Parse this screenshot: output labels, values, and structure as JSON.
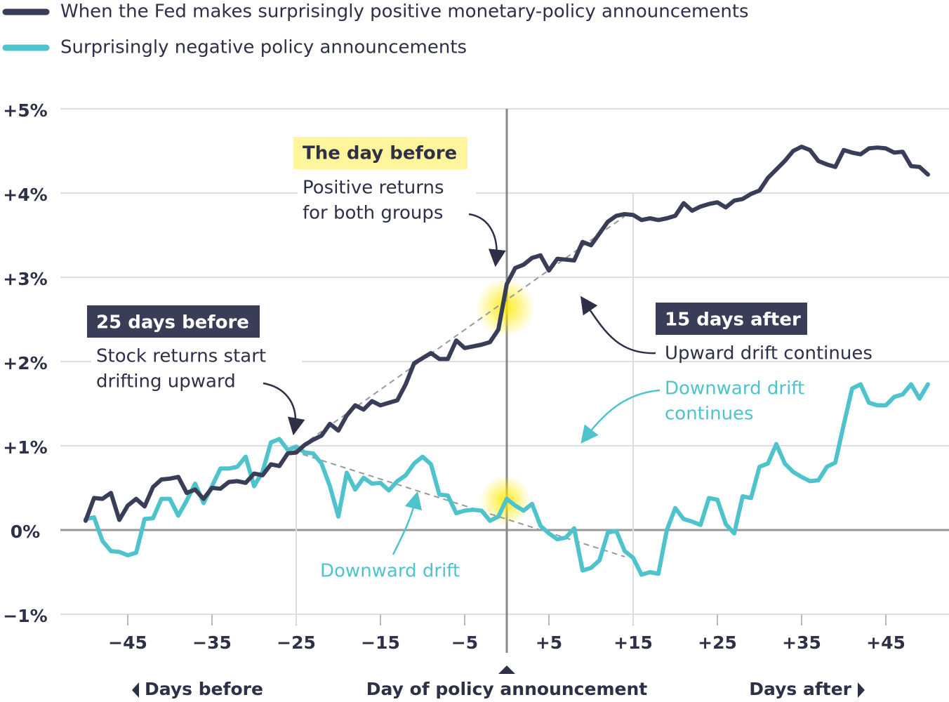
{
  "chart_data": {
    "type": "line",
    "legend": [
      "When the Fed makes surprisingly positive monetary-policy announcements",
      "Surprisingly negative policy announcements"
    ],
    "x": [
      -50,
      -49,
      -48,
      -47,
      -46,
      -45,
      -44,
      -43,
      -42,
      -41,
      -40,
      -39,
      -38,
      -37,
      -36,
      -35,
      -34,
      -33,
      -32,
      -31,
      -30,
      -29,
      -28,
      -27,
      -26,
      -25,
      -24,
      -23,
      -22,
      -21,
      -20,
      -19,
      -18,
      -17,
      -16,
      -15,
      -14,
      -13,
      -12,
      -11,
      -10,
      -9,
      -8,
      -7,
      -6,
      -5,
      -4,
      -3,
      -2,
      -1,
      0,
      1,
      2,
      3,
      4,
      5,
      6,
      7,
      8,
      9,
      10,
      11,
      12,
      13,
      14,
      15,
      16,
      17,
      18,
      19,
      20,
      21,
      22,
      23,
      24,
      25,
      26,
      27,
      28,
      29,
      30,
      31,
      32,
      33,
      34,
      35,
      36,
      37,
      38,
      39,
      40,
      41,
      42,
      43,
      44,
      45,
      46,
      47,
      48,
      49,
      50
    ],
    "series": [
      {
        "name": "When the Fed makes surprisingly positive monetary-policy announcements",
        "color": "#3a3d58",
        "values": [
          0.11,
          0.38,
          0.37,
          0.44,
          0.12,
          0.29,
          0.37,
          0.28,
          0.51,
          0.6,
          0.61,
          0.63,
          0.44,
          0.48,
          0.37,
          0.5,
          0.49,
          0.57,
          0.58,
          0.56,
          0.67,
          0.65,
          0.78,
          0.76,
          0.91,
          0.92,
          1.01,
          1.07,
          1.12,
          1.26,
          1.18,
          1.36,
          1.48,
          1.43,
          1.53,
          1.48,
          1.51,
          1.54,
          1.73,
          1.98,
          2.04,
          2.1,
          2.03,
          2.03,
          2.25,
          2.16,
          2.18,
          2.2,
          2.23,
          2.38,
          2.92,
          3.11,
          3.15,
          3.23,
          3.26,
          3.08,
          3.22,
          3.21,
          3.2,
          3.42,
          3.38,
          3.52,
          3.66,
          3.73,
          3.75,
          3.74,
          3.68,
          3.7,
          3.68,
          3.7,
          3.73,
          3.88,
          3.79,
          3.84,
          3.87,
          3.89,
          3.83,
          3.91,
          3.93,
          3.99,
          4.03,
          4.18,
          4.28,
          4.38,
          4.5,
          4.55,
          4.51,
          4.38,
          4.34,
          4.31,
          4.51,
          4.48,
          4.46,
          4.53,
          4.54,
          4.53,
          4.48,
          4.49,
          4.32,
          4.31,
          4.22
        ]
      },
      {
        "name": "Surprisingly negative policy announcements",
        "color": "#4ec3cc",
        "values": [
          0.13,
          0.15,
          -0.13,
          -0.25,
          -0.26,
          -0.3,
          -0.27,
          0.13,
          0.14,
          0.37,
          0.37,
          0.17,
          0.35,
          0.55,
          0.32,
          0.52,
          0.73,
          0.73,
          0.75,
          0.87,
          0.52,
          0.69,
          1.04,
          1.08,
          0.95,
          0.99,
          0.92,
          0.91,
          0.79,
          0.52,
          0.16,
          0.68,
          0.48,
          0.62,
          0.55,
          0.56,
          0.47,
          0.58,
          0.65,
          0.79,
          0.87,
          0.78,
          0.42,
          0.41,
          0.2,
          0.23,
          0.24,
          0.23,
          0.11,
          0.16,
          0.37,
          0.29,
          0.23,
          0.31,
          0.05,
          -0.04,
          -0.11,
          -0.09,
          0.02,
          -0.48,
          -0.45,
          -0.36,
          -0.03,
          -0.01,
          -0.25,
          -0.33,
          -0.53,
          -0.5,
          -0.52,
          0,
          0.26,
          0.13,
          0.1,
          0.06,
          0.38,
          0.36,
          0.07,
          -0.04,
          0.4,
          0.38,
          0.75,
          0.79,
          1.02,
          0.79,
          0.69,
          0.63,
          0.58,
          0.59,
          0.75,
          0.8,
          1.25,
          1.68,
          1.73,
          1.51,
          1.48,
          1.48,
          1.58,
          1.61,
          1.73,
          1.56,
          1.73
        ]
      }
    ],
    "xlim": [
      -53,
      52.5
    ],
    "ylim": [
      -1,
      5
    ],
    "xticks": [
      {
        "value": -45,
        "label": "−45"
      },
      {
        "value": -35,
        "label": "−35"
      },
      {
        "value": -25,
        "label": "−25"
      },
      {
        "value": -15,
        "label": "−15"
      },
      {
        "value": -5,
        "label": "−5"
      },
      {
        "value": 5,
        "label": "+5"
      },
      {
        "value": 15,
        "label": "+15"
      },
      {
        "value": 25,
        "label": "+25"
      },
      {
        "value": 35,
        "label": "+35"
      },
      {
        "value": 45,
        "label": "+45"
      }
    ],
    "yticks": [
      {
        "value": -1,
        "label": "−1%"
      },
      {
        "value": 0,
        "label": "0%"
      },
      {
        "value": 1,
        "label": "+1%"
      },
      {
        "value": 2,
        "label": "+2%"
      },
      {
        "value": 3,
        "label": "+3%"
      },
      {
        "value": 4,
        "label": "+4%"
      },
      {
        "value": 5,
        "label": "+5%"
      }
    ],
    "reference_lines": [
      -25,
      0,
      15
    ],
    "grid": true,
    "annotations": {
      "day_before": {
        "heading": "The day before",
        "lines": [
          "Positive returns",
          "for both groups"
        ]
      },
      "before25": {
        "heading": "25 days before",
        "lines": [
          "Stock returns start",
          "drifting upward"
        ]
      },
      "after15": {
        "heading": "15 days after",
        "lines": [
          "Upward drift continues"
        ]
      },
      "down_continues": {
        "lines": [
          "Downward drift",
          "continues"
        ]
      },
      "down": {
        "lines": [
          "Downward drift"
        ]
      }
    },
    "axis_labels": {
      "before": "Days before",
      "center": "Day of policy announcement",
      "after": "Days after"
    }
  }
}
